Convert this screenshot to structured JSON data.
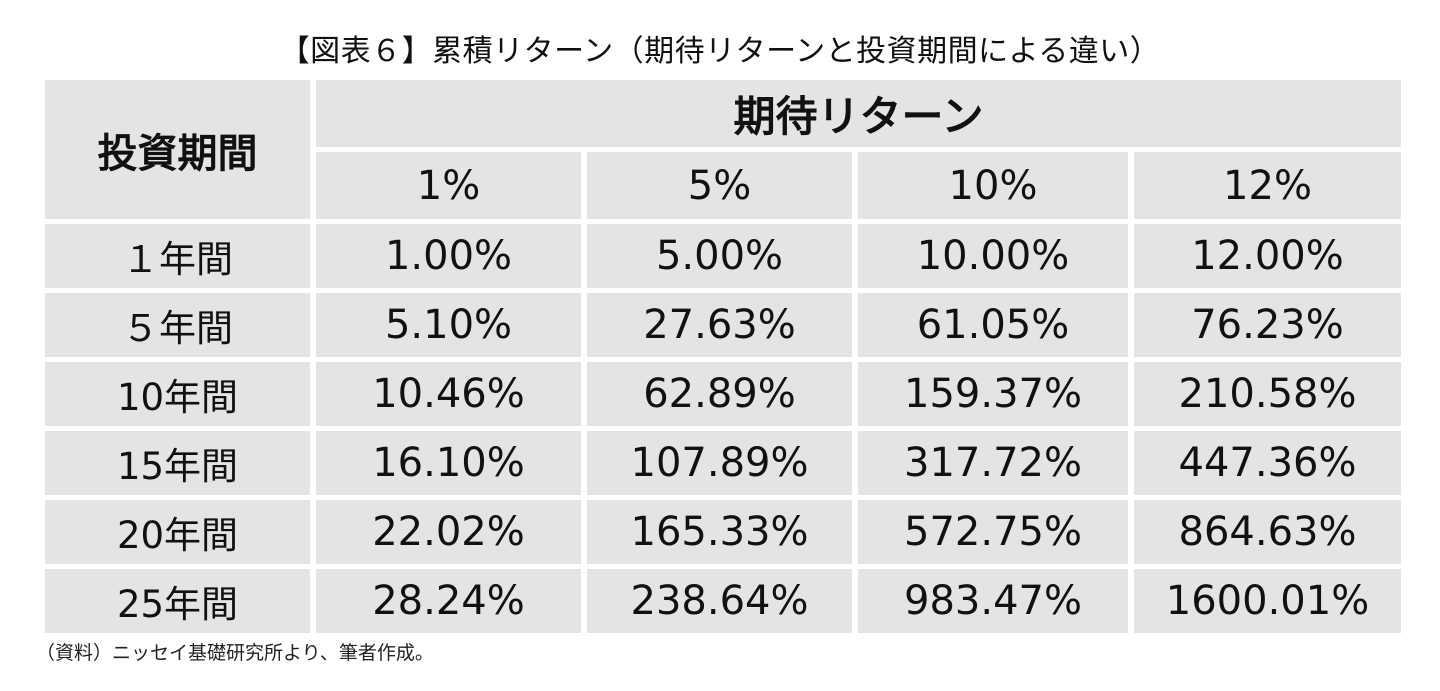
{
  "title": "【図表６】累積リターン（期待リターンと投資期間による違い）",
  "source": "（資料）ニッセイ基礎研究所より、筆者作成。",
  "chart_data": {
    "type": "table",
    "title": "【図表６】累積リターン（期待リターンと投資期間による違い）",
    "row_header": "投資期間",
    "column_group_header": "期待リターン",
    "columns": [
      "1%",
      "5%",
      "10%",
      "12%"
    ],
    "rows": [
      {
        "period": "１年間",
        "values": [
          "1.00%",
          "5.00%",
          "10.00%",
          "12.00%"
        ]
      },
      {
        "period": "５年間",
        "values": [
          "5.10%",
          "27.63%",
          "61.05%",
          "76.23%"
        ]
      },
      {
        "period": "10年間",
        "values": [
          "10.46%",
          "62.89%",
          "159.37%",
          "210.58%"
        ]
      },
      {
        "period": "15年間",
        "values": [
          "16.10%",
          "107.89%",
          "317.72%",
          "447.36%"
        ]
      },
      {
        "period": "20年間",
        "values": [
          "22.02%",
          "165.33%",
          "572.75%",
          "864.63%"
        ]
      },
      {
        "period": "25年間",
        "values": [
          "28.24%",
          "238.64%",
          "983.47%",
          "1600.01%"
        ]
      }
    ],
    "source": "（資料）ニッセイ基礎研究所より、筆者作成。"
  }
}
